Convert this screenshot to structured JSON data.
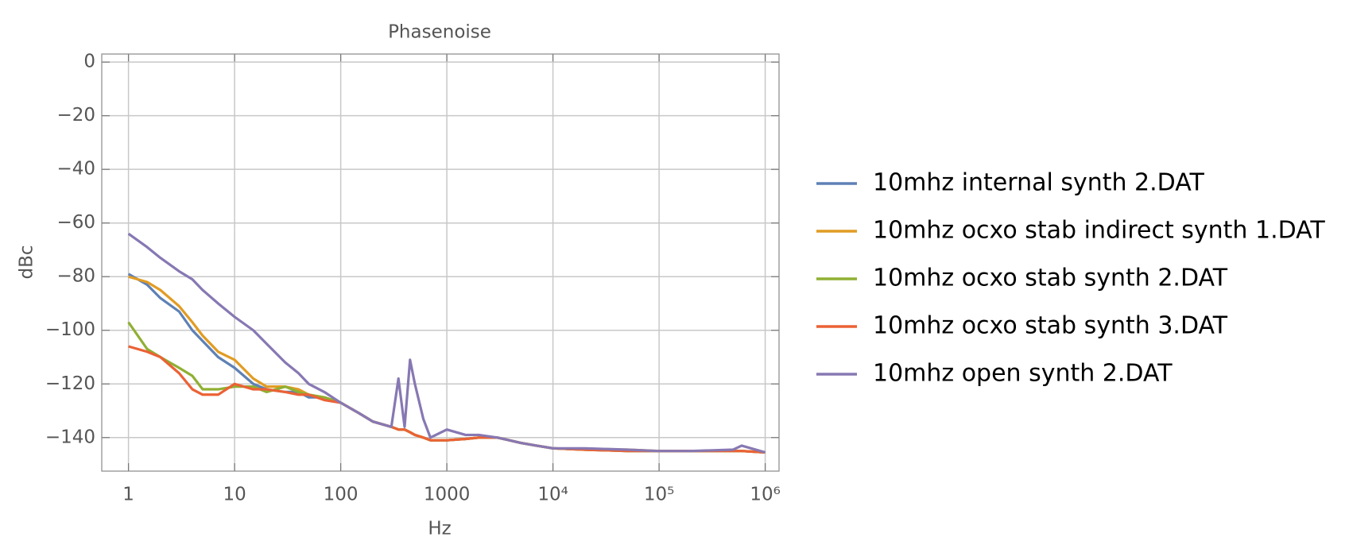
{
  "chart_data": {
    "type": "line",
    "title": "Phasenoise",
    "x_label": "Hz",
    "y_label": "dBc",
    "xscale": "log",
    "grid": true,
    "legend": "right",
    "xlim": [
      0.56,
      1350000
    ],
    "ylim": [
      -152.5,
      3
    ],
    "xticks": [
      1,
      10,
      100,
      1000,
      {
        "value": 10000,
        "label": "10⁴"
      },
      {
        "value": 100000,
        "label": "10⁵"
      },
      {
        "value": 1000000,
        "label": "10⁶"
      }
    ],
    "yticks": [
      0,
      {
        "value": -20,
        "label": "−20"
      },
      {
        "value": -40,
        "label": "−40"
      },
      {
        "value": -60,
        "label": "−60"
      },
      {
        "value": -80,
        "label": "−80"
      },
      {
        "value": -100,
        "label": "−100"
      },
      {
        "value": -120,
        "label": "−120"
      },
      {
        "value": -140,
        "label": "−140"
      }
    ],
    "x": [
      1,
      1.5,
      2,
      3,
      4,
      5,
      7,
      10,
      15,
      20,
      30,
      40,
      50,
      70,
      100,
      150,
      200,
      300,
      350,
      400,
      450,
      500,
      600,
      700,
      1000,
      1500,
      2000,
      3000,
      5000,
      7000,
      10000,
      20000,
      50000,
      100000,
      200000,
      500000,
      600000,
      1000000
    ],
    "series": [
      {
        "name": "10mhz internal synth 2.DAT",
        "color": "#5e81b5",
        "values": [
          -79,
          -83,
          -88,
          -93,
          -100,
          -104,
          -110,
          -114,
          -120,
          -122,
          -123,
          -123,
          -125,
          -125,
          -127,
          -131,
          -134,
          -136,
          -137,
          -137,
          -138,
          -139,
          -140,
          -141,
          -141,
          -140.5,
          -140,
          -140,
          -142,
          -143,
          -144,
          -144.5,
          -145,
          -145,
          -145,
          -145,
          -145,
          -145.5
        ]
      },
      {
        "name": "10mhz ocxo stab indirect synth 1.DAT",
        "color": "#e19c24",
        "values": [
          -80,
          -82,
          -85,
          -91,
          -97,
          -102,
          -108,
          -111,
          -118,
          -121,
          -121,
          -122,
          -124,
          -125,
          -127,
          -131,
          -134,
          -136,
          -137,
          -137,
          -138,
          -139,
          -140,
          -141,
          -141,
          -140.5,
          -140,
          -140,
          -142,
          -143,
          -144,
          -144.5,
          -144.5,
          -145,
          -145,
          -145,
          -145,
          -145.5
        ]
      },
      {
        "name": "10mhz ocxo stab synth 2.DAT",
        "color": "#8fb032",
        "values": [
          -97,
          -107,
          -110,
          -114,
          -117,
          -122,
          -122,
          -121,
          -121,
          -123,
          -121,
          -123,
          -124,
          -125,
          -127,
          -131,
          -134,
          -136,
          -137,
          -137,
          -138,
          -139,
          -140,
          -141,
          -141,
          -140.5,
          -140,
          -140,
          -142,
          -143,
          -144,
          -144.5,
          -145,
          -145,
          -145,
          -145,
          -145,
          -145.5
        ]
      },
      {
        "name": "10mhz ocxo stab synth 3.DAT",
        "color": "#eb6235",
        "values": [
          -106,
          -108,
          -110,
          -116,
          -122,
          -124,
          -124,
          -120,
          -122,
          -122,
          -123,
          -124,
          -124,
          -126,
          -127,
          -131,
          -134,
          -136,
          -137,
          -137,
          -138,
          -139,
          -140,
          -141,
          -141,
          -140.5,
          -140,
          -140,
          -142,
          -143,
          -144,
          -144.5,
          -145,
          -145,
          -145,
          -145,
          -145,
          -145.5
        ]
      },
      {
        "name": "10mhz open synth 2.DAT",
        "color": "#8778b3",
        "values": [
          -64,
          -69,
          -73,
          -78,
          -81,
          -85,
          -90,
          -95,
          -100,
          -105,
          -112,
          -116,
          -120,
          -123,
          -127,
          -131,
          -134,
          -136,
          -118,
          -136,
          -111,
          -120,
          -133,
          -140,
          -137,
          -139,
          -139,
          -140,
          -142,
          -143,
          -144,
          -144,
          -144.5,
          -145,
          -145,
          -144.5,
          -143,
          -145.5
        ]
      }
    ]
  }
}
